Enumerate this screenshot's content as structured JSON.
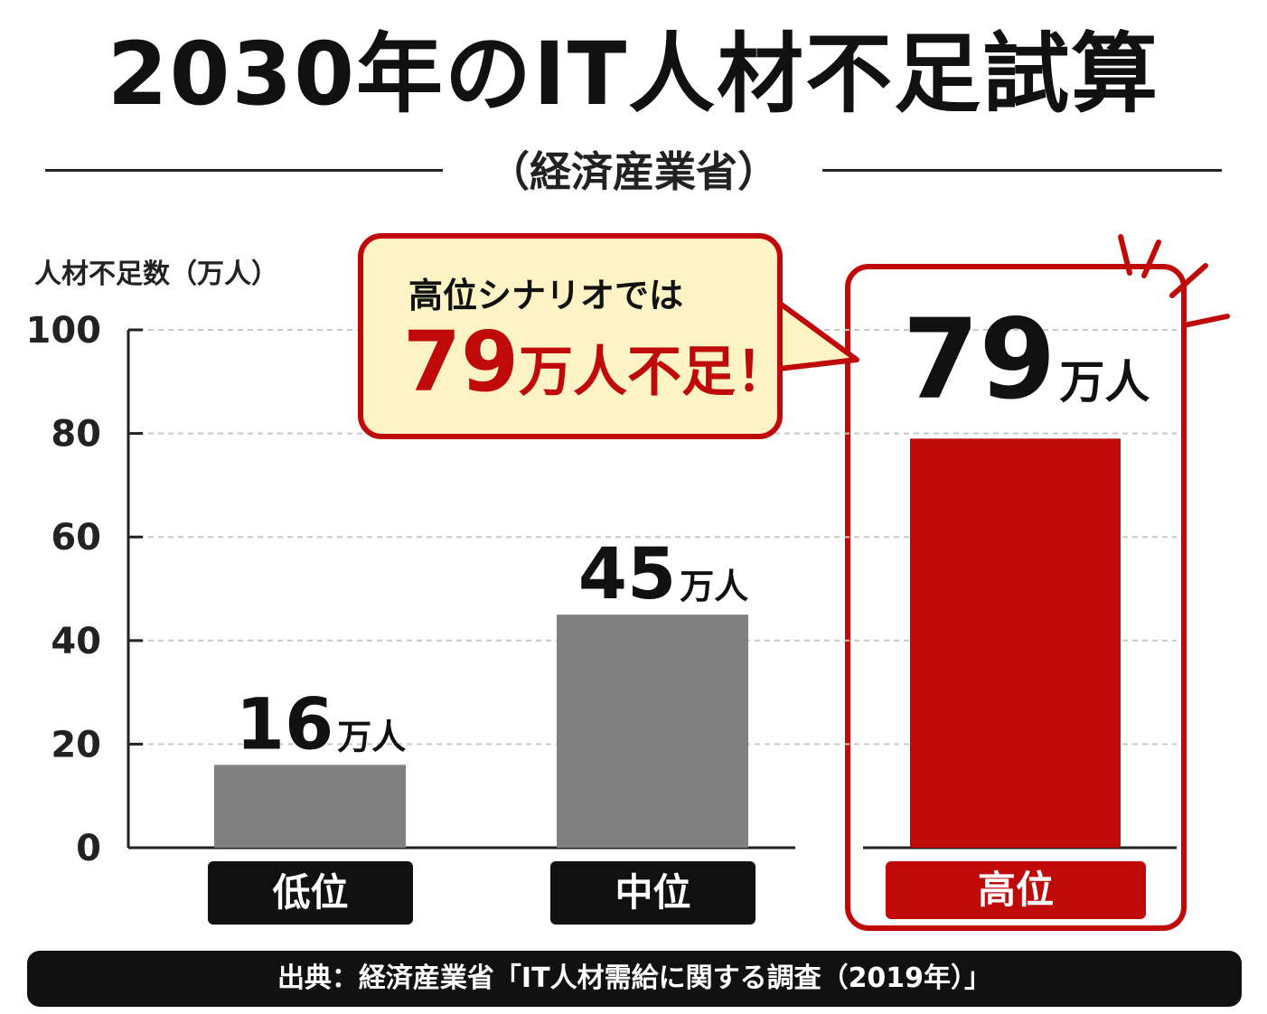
{
  "title": "2030年のIT人材不足試算",
  "subtitle": "（経済産業省）",
  "colors": {
    "gray_bar": "#808080",
    "highlight": "#c00a0a",
    "callout_bg": "#fdf3c4",
    "underline": "#f5c400",
    "label_dark": "#111111"
  },
  "callout": {
    "line1": "高位シナリオでは",
    "number": "79",
    "rest": "万人不足！"
  },
  "footer": "出典：経済産業省「IT人材需給に関する調査（2019年）」",
  "chart_data": {
    "type": "bar",
    "ylabel": "人材不足数（万人）",
    "ylim": [
      0,
      100
    ],
    "yticks": [
      0,
      20,
      40,
      60,
      80,
      100
    ],
    "grid": true,
    "categories": [
      "低位",
      "中位",
      "高位"
    ],
    "values": [
      16,
      45,
      79
    ],
    "value_labels": [
      "16",
      "45",
      "79"
    ],
    "unit": "万人",
    "highlight_category": "高位"
  }
}
